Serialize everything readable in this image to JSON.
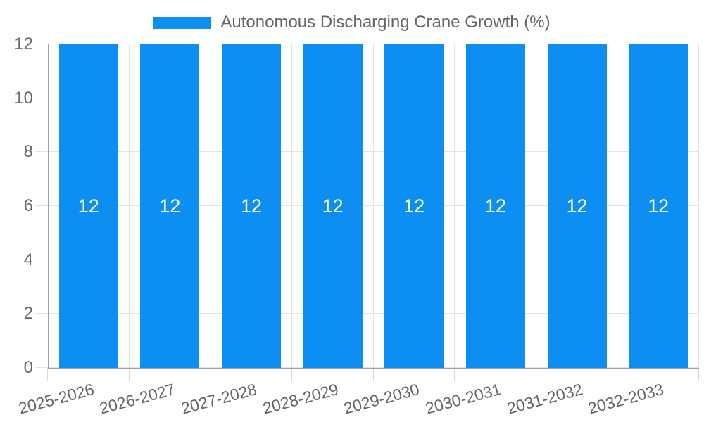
{
  "legend": {
    "label": "Autonomous Discharging Crane Growth (%)"
  },
  "chart_data": {
    "type": "bar",
    "title": "Autonomous Discharging Crane Growth (%)",
    "categories": [
      "2025-2026",
      "2026-2027",
      "2027-2028",
      "2028-2029",
      "2029-2030",
      "2030-2031",
      "2031-2032",
      "2032-2033"
    ],
    "series": [
      {
        "name": "Autonomous Discharging Crane Growth (%)",
        "values": [
          12,
          12,
          12,
          12,
          12,
          12,
          12,
          12
        ]
      }
    ],
    "bar_value_labels": [
      "12",
      "12",
      "12",
      "12",
      "12",
      "12",
      "12",
      "12"
    ],
    "xlabel": "",
    "ylabel": "",
    "ylim": [
      0,
      12
    ],
    "yticks": [
      0,
      2,
      4,
      6,
      8,
      10,
      12
    ],
    "grid": true,
    "legend_position": "top",
    "x_tick_rotation_deg": -15,
    "colors": {
      "bar": "#0d8ff2",
      "gridline": "#e3e3e3",
      "tick": "#d9d9d9",
      "axis": "#a3a3a3",
      "tick_text": "#666666",
      "bar_label_text": "#ffffff"
    }
  }
}
